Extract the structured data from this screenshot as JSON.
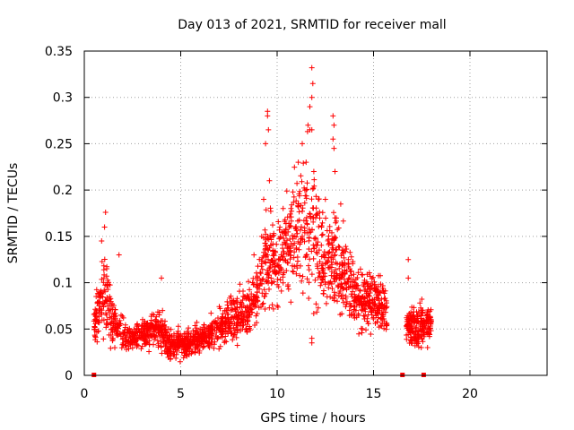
{
  "chart_data": {
    "type": "scatter",
    "title": "Day 013 of 2021, SRMTID for receiver mall",
    "xlabel": "GPS time / hours",
    "ylabel": "SRMTID / TECUs",
    "xlim": [
      0,
      24
    ],
    "ylim": [
      0,
      0.35
    ],
    "xticks": [
      0,
      5,
      10,
      15,
      20
    ],
    "yticks": [
      0,
      0.05,
      0.1,
      0.15,
      0.2,
      0.25,
      0.3,
      0.35
    ],
    "xtick_labels": [
      "0",
      "5",
      "10",
      "15",
      "20"
    ],
    "ytick_labels": [
      "0",
      "0.05",
      "0.1",
      "0.15",
      "0.2",
      "0.25",
      "0.3",
      "0.35"
    ],
    "grid": true,
    "marker": "+",
    "color": "#ff0000",
    "envelope": [
      [
        0.5,
        0.06,
        0.015
      ],
      [
        0.8,
        0.07,
        0.02
      ],
      [
        1.1,
        0.09,
        0.035
      ],
      [
        1.4,
        0.06,
        0.02
      ],
      [
        2.0,
        0.045,
        0.012
      ],
      [
        2.5,
        0.04,
        0.01
      ],
      [
        3.0,
        0.042,
        0.01
      ],
      [
        3.5,
        0.048,
        0.012
      ],
      [
        4.0,
        0.05,
        0.014
      ],
      [
        4.3,
        0.035,
        0.01
      ],
      [
        5.0,
        0.032,
        0.01
      ],
      [
        5.5,
        0.036,
        0.01
      ],
      [
        6.0,
        0.04,
        0.01
      ],
      [
        6.5,
        0.045,
        0.012
      ],
      [
        7.0,
        0.05,
        0.014
      ],
      [
        7.5,
        0.058,
        0.016
      ],
      [
        8.0,
        0.062,
        0.018
      ],
      [
        8.5,
        0.07,
        0.018
      ],
      [
        9.0,
        0.09,
        0.022
      ],
      [
        9.5,
        0.13,
        0.04
      ],
      [
        10.0,
        0.12,
        0.03
      ],
      [
        10.5,
        0.14,
        0.035
      ],
      [
        11.0,
        0.15,
        0.04
      ],
      [
        11.5,
        0.17,
        0.05
      ],
      [
        12.0,
        0.15,
        0.05
      ],
      [
        12.5,
        0.12,
        0.03
      ],
      [
        13.0,
        0.13,
        0.04
      ],
      [
        13.5,
        0.11,
        0.03
      ],
      [
        14.0,
        0.09,
        0.025
      ],
      [
        14.5,
        0.08,
        0.022
      ],
      [
        15.0,
        0.085,
        0.022
      ],
      [
        15.5,
        0.07,
        0.02
      ],
      [
        16.7,
        0.055,
        0.015
      ],
      [
        17.2,
        0.05,
        0.015
      ],
      [
        17.6,
        0.055,
        0.015
      ],
      [
        18.0,
        0.055,
        0.014
      ]
    ],
    "outliers": [
      [
        1.1,
        0.176
      ],
      [
        1.05,
        0.16
      ],
      [
        0.9,
        0.145
      ],
      [
        1.8,
        0.13
      ],
      [
        4.0,
        0.105
      ],
      [
        9.5,
        0.28
      ],
      [
        9.5,
        0.285
      ],
      [
        9.55,
        0.265
      ],
      [
        9.4,
        0.25
      ],
      [
        9.6,
        0.21
      ],
      [
        9.3,
        0.19
      ],
      [
        11.1,
        0.23
      ],
      [
        11.3,
        0.25
      ],
      [
        11.5,
        0.2
      ],
      [
        11.7,
        0.29
      ],
      [
        11.8,
        0.332
      ],
      [
        11.85,
        0.315
      ],
      [
        11.8,
        0.3
      ],
      [
        11.6,
        0.27
      ],
      [
        11.7,
        0.265
      ],
      [
        11.8,
        0.265
      ],
      [
        11.5,
        0.23
      ],
      [
        11.9,
        0.22
      ],
      [
        12.0,
        0.17
      ],
      [
        12.3,
        0.16
      ],
      [
        12.5,
        0.19
      ],
      [
        12.9,
        0.28
      ],
      [
        12.95,
        0.27
      ],
      [
        12.9,
        0.255
      ],
      [
        12.95,
        0.245
      ],
      [
        13.0,
        0.22
      ],
      [
        13.3,
        0.185
      ],
      [
        11.8,
        0.035
      ],
      [
        11.8,
        0.04
      ],
      [
        16.8,
        0.125
      ],
      [
        16.8,
        0.105
      ],
      [
        9.2,
        0.15
      ],
      [
        8.8,
        0.13
      ]
    ],
    "gaps": [
      0.5,
      16.5,
      17.6
    ],
    "gap_value": 0
  }
}
